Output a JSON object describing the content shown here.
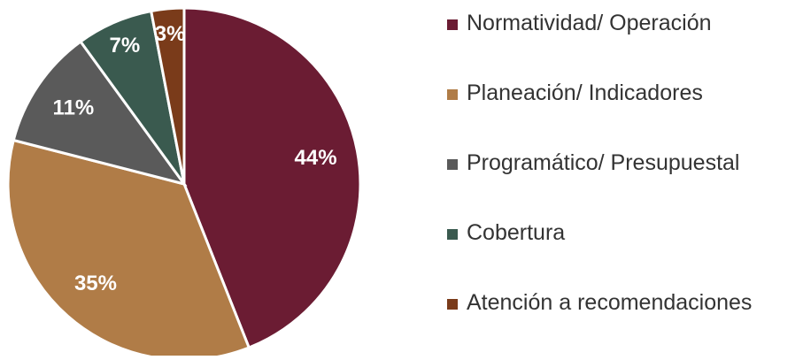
{
  "chart_data": {
    "type": "pie",
    "categories": [
      "Normatividad/ Operación",
      "Planeación/ Indicadores",
      "Programático/ Presupuestal",
      "Cobertura",
      "Atención a recomendaciones"
    ],
    "values": [
      44,
      35,
      11,
      7,
      3
    ],
    "value_labels": [
      "44%",
      "35%",
      "11%",
      "7%",
      "3%"
    ],
    "colors": [
      "#6b1c33",
      "#b07c47",
      "#5a5a5a",
      "#3a5a4f",
      "#7a3b1a"
    ],
    "legend": "right"
  }
}
